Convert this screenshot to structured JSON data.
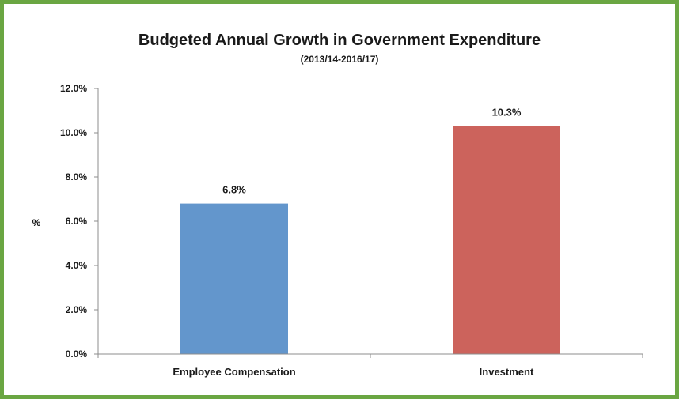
{
  "chart_data": {
    "type": "bar",
    "title": "Budgeted Annual Growth in Government Expenditure",
    "subtitle": "(2013/14-2016/17)",
    "ylabel": "%",
    "xlabel": "",
    "categories": [
      "Employee Compensation",
      "Investment"
    ],
    "values": [
      6.8,
      10.3
    ],
    "data_labels": [
      "6.8%",
      "10.3%"
    ],
    "colors": [
      "#6396cc",
      "#cc635c"
    ],
    "ylim": [
      0,
      12
    ],
    "y_ticks": [
      0,
      2,
      4,
      6,
      8,
      10,
      12
    ],
    "y_tick_labels": [
      "0.0%",
      "2.0%",
      "4.0%",
      "6.0%",
      "8.0%",
      "10.0%",
      "12.0%"
    ],
    "grid": false,
    "legend": "none",
    "border_color": "#6aa642"
  }
}
